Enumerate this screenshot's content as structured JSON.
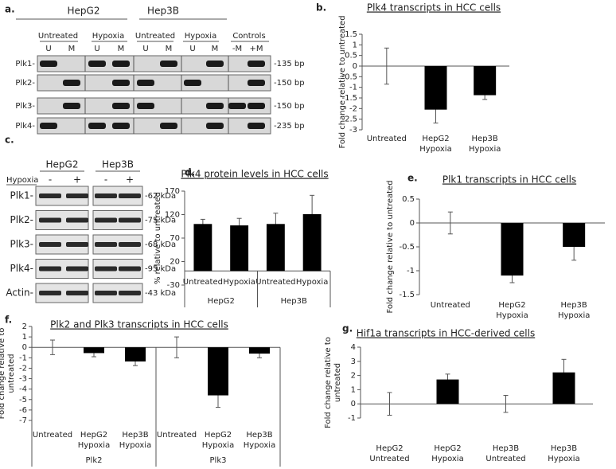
{
  "gel_a": {
    "panel_label": "a.",
    "cell_lines": [
      "HepG2",
      "Hep3B"
    ],
    "conditions": [
      "Untreated",
      "Hypoxia",
      "Untreated",
      "Hypoxia",
      "Controls"
    ],
    "lanes": [
      "U",
      "M",
      "U",
      "M",
      "U",
      "M",
      "U",
      "M",
      "-M",
      "+M"
    ],
    "rows": [
      "Plk1-",
      "Plk2-",
      "Plk3-",
      "Plk4-"
    ],
    "sizes": [
      "-135 bp",
      "-150 bp",
      "-150 bp",
      "-235 bp"
    ]
  },
  "blot_c": {
    "panel_label": "c.",
    "cell_lines": [
      "HepG2",
      "Hep3B"
    ],
    "treatment": "Hypoxia",
    "lanes": [
      "-",
      "+",
      "-",
      "+"
    ],
    "rows": [
      "Plk1-",
      "Plk2-",
      "Plk3-",
      "Plk4-",
      "Actin-"
    ],
    "sizes": [
      "-62 kDa",
      "-75 kDa",
      "-68 kDa",
      "-95 kDa",
      "-43 kDa"
    ]
  },
  "chart_data": [
    {
      "type": "bar",
      "panel_label": "b.",
      "title": "Plk4 transcripts in HCC cells",
      "y_label": "Fold change relative to untreated",
      "categories": [
        "Untreated",
        "HepG2 Hypoxia",
        "Hep3B Hypoxia"
      ],
      "values": [
        0,
        -2.05,
        -1.37
      ],
      "errors": [
        0.85,
        0.63,
        0.2
      ],
      "ylim": [
        -3,
        1.5
      ],
      "yticks": [
        -3,
        -2.5,
        -2,
        -1.5,
        -1,
        -0.5,
        0,
        0.5,
        1,
        1.5
      ],
      "color": "#000000"
    },
    {
      "type": "bar",
      "panel_label": "d.",
      "title": "Plk4 protein levels in HCC cells",
      "y_label": "% relative to untreated",
      "categories": [
        "Untreated",
        "Hypoxia",
        "Untreated",
        "Hypoxia"
      ],
      "groups": [
        "HepG2",
        "Hep3B"
      ],
      "values": [
        100,
        97,
        100,
        121
      ],
      "errors": [
        10,
        15,
        23,
        40
      ],
      "ylim": [
        -30,
        170
      ],
      "yticks": [
        -30,
        20,
        70,
        120,
        170
      ],
      "color": "#000000"
    },
    {
      "type": "bar",
      "panel_label": "e.",
      "title": "Plk1 transcripts in HCC cells",
      "y_label": "Fold change relative to untreated",
      "categories": [
        "Untreated",
        "HepG2 Hypoxia",
        "Hep3B Hypoxia"
      ],
      "values": [
        0,
        -1.1,
        -0.5
      ],
      "errors": [
        0.23,
        0.15,
        0.28
      ],
      "ylim": [
        -1.5,
        0.5
      ],
      "yticks": [
        -1.5,
        -1,
        -0.5,
        0,
        0.5
      ],
      "color": "#000000"
    },
    {
      "type": "bar",
      "panel_label": "f.",
      "title": "Plk2 and Plk3 transcripts in HCC cells",
      "y_label": "Fold change relative to untreated",
      "categories": [
        "Untreated",
        "HepG2 Hypoxia",
        "Hep3B Hypoxia",
        "Untreated",
        "HepG2 Hypoxia",
        "Hep3B Hypoxia"
      ],
      "groups": [
        "Plk2",
        "Plk3"
      ],
      "values": [
        0,
        -0.55,
        -1.35,
        0,
        -4.6,
        -0.6
      ],
      "errors": [
        0.7,
        0.35,
        0.4,
        1.0,
        1.15,
        0.4
      ],
      "ylim": [
        -7,
        2
      ],
      "yticks": [
        -7,
        -6,
        -5,
        -4,
        -3,
        -2,
        -1,
        0,
        1,
        2
      ],
      "color": "#000000"
    },
    {
      "type": "bar",
      "panel_label": "g.",
      "title": "Hif1a transcripts in HCC-derived cells",
      "y_label": "Fold change relative to untreated",
      "categories": [
        "HepG2 Untreated",
        "HepG2 Hypoxia",
        "Hep3B Untreated",
        "Hep3B Hypoxia"
      ],
      "values": [
        0,
        1.72,
        0,
        2.22
      ],
      "errors": [
        0.8,
        0.38,
        0.6,
        0.92
      ],
      "ylim": [
        -1,
        4
      ],
      "yticks": [
        -1,
        0,
        1,
        2,
        3,
        4
      ],
      "color": "#000000"
    }
  ]
}
